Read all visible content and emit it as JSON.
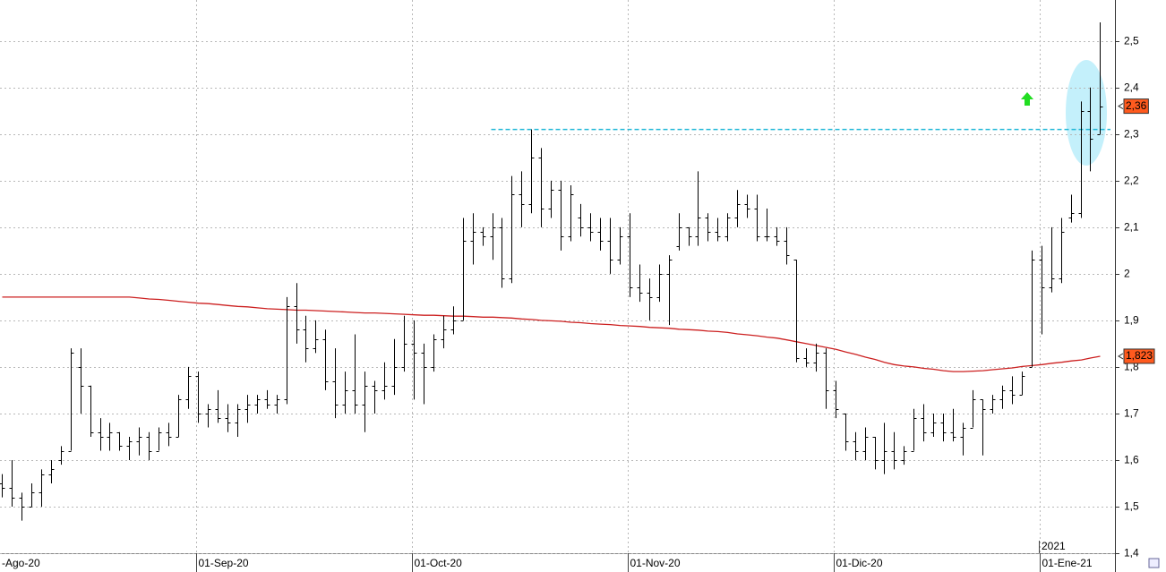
{
  "chart_data": {
    "type": "ohlc",
    "ylim": [
      1.4,
      2.588
    ],
    "yticks": [
      {
        "value": 1.4,
        "label": "1,4"
      },
      {
        "value": 1.5,
        "label": "1,5"
      },
      {
        "value": 1.6,
        "label": "1,6"
      },
      {
        "value": 1.7,
        "label": "1,7"
      },
      {
        "value": 1.8,
        "label": "1,8"
      },
      {
        "value": 1.9,
        "label": "1,9"
      },
      {
        "value": 2.0,
        "label": "2"
      },
      {
        "value": 2.1,
        "label": "2,1"
      },
      {
        "value": 2.2,
        "label": "2,2"
      },
      {
        "value": 2.3,
        "label": "2,3"
      },
      {
        "value": 2.4,
        "label": "2,4"
      },
      {
        "value": 2.5,
        "label": "2,5"
      }
    ],
    "grid": true,
    "year_label": "2021",
    "categories": [
      "-Ago-20",
      null,
      null,
      null,
      null,
      null,
      null,
      null,
      null,
      null,
      null,
      null,
      null,
      null,
      null,
      null,
      null,
      null,
      null,
      null,
      "01-Sep-20",
      null,
      null,
      null,
      null,
      null,
      null,
      null,
      null,
      null,
      null,
      null,
      null,
      null,
      null,
      null,
      null,
      null,
      null,
      null,
      null,
      null,
      "01-Oct-20",
      null,
      null,
      null,
      null,
      null,
      null,
      null,
      null,
      null,
      null,
      null,
      null,
      null,
      null,
      null,
      null,
      null,
      null,
      null,
      null,
      null,
      "01-Nov-20",
      null,
      null,
      null,
      null,
      null,
      null,
      null,
      null,
      null,
      null,
      null,
      null,
      null,
      null,
      null,
      null,
      null,
      null,
      null,
      null,
      "01-Dic-20",
      null,
      null,
      null,
      null,
      null,
      null,
      null,
      null,
      null,
      null,
      null,
      null,
      null,
      null,
      null,
      null,
      null,
      null,
      null,
      null,
      "01-Ene-21",
      null,
      null,
      null,
      null,
      null,
      null
    ],
    "ohlc_color": "#000000",
    "ohlc": [
      [
        1.55,
        1.57,
        1.52,
        1.54
      ],
      [
        1.54,
        1.6,
        1.5,
        1.52
      ],
      [
        1.52,
        1.53,
        1.47,
        1.5
      ],
      [
        1.5,
        1.55,
        1.5,
        1.53
      ],
      [
        1.53,
        1.58,
        1.5,
        1.57
      ],
      [
        1.57,
        1.6,
        1.55,
        1.58
      ],
      [
        1.6,
        1.63,
        1.59,
        1.62
      ],
      [
        1.62,
        1.84,
        1.62,
        1.83
      ],
      [
        1.8,
        1.84,
        1.7,
        1.76
      ],
      [
        1.76,
        1.76,
        1.65,
        1.66
      ],
      [
        1.66,
        1.69,
        1.62,
        1.65
      ],
      [
        1.65,
        1.68,
        1.62,
        1.66
      ],
      [
        1.66,
        1.66,
        1.62,
        1.63
      ],
      [
        1.63,
        1.65,
        1.6,
        1.64
      ],
      [
        1.64,
        1.67,
        1.61,
        1.65
      ],
      [
        1.65,
        1.66,
        1.6,
        1.62
      ],
      [
        1.62,
        1.67,
        1.62,
        1.66
      ],
      [
        1.66,
        1.68,
        1.63,
        1.65
      ],
      [
        1.65,
        1.74,
        1.65,
        1.73
      ],
      [
        1.73,
        1.8,
        1.71,
        1.78
      ],
      [
        1.78,
        1.79,
        1.68,
        1.7
      ],
      [
        1.7,
        1.72,
        1.67,
        1.71
      ],
      [
        1.71,
        1.75,
        1.68,
        1.69
      ],
      [
        1.69,
        1.72,
        1.66,
        1.68
      ],
      [
        1.68,
        1.72,
        1.65,
        1.71
      ],
      [
        1.71,
        1.74,
        1.68,
        1.72
      ],
      [
        1.72,
        1.74,
        1.7,
        1.73
      ],
      [
        1.73,
        1.75,
        1.71,
        1.72
      ],
      [
        1.72,
        1.74,
        1.7,
        1.73
      ],
      [
        1.73,
        1.95,
        1.72,
        1.93
      ],
      [
        1.93,
        1.98,
        1.85,
        1.88
      ],
      [
        1.88,
        1.91,
        1.81,
        1.84
      ],
      [
        1.84,
        1.9,
        1.83,
        1.86
      ],
      [
        1.86,
        1.88,
        1.75,
        1.77
      ],
      [
        1.77,
        1.84,
        1.69,
        1.72
      ],
      [
        1.72,
        1.79,
        1.7,
        1.75
      ],
      [
        1.75,
        1.87,
        1.7,
        1.72
      ],
      [
        1.72,
        1.79,
        1.66,
        1.76
      ],
      [
        1.76,
        1.77,
        1.7,
        1.75
      ],
      [
        1.75,
        1.81,
        1.73,
        1.76
      ],
      [
        1.76,
        1.86,
        1.74,
        1.8
      ],
      [
        1.8,
        1.91,
        1.79,
        1.85
      ],
      [
        1.85,
        1.9,
        1.73,
        1.83
      ],
      [
        1.83,
        1.85,
        1.72,
        1.8
      ],
      [
        1.8,
        1.87,
        1.79,
        1.86
      ],
      [
        1.86,
        1.91,
        1.84,
        1.88
      ],
      [
        1.88,
        1.93,
        1.87,
        1.9
      ],
      [
        1.9,
        2.12,
        1.9,
        2.07
      ],
      [
        2.07,
        2.13,
        2.02,
        2.09
      ],
      [
        2.09,
        2.1,
        2.06,
        2.08
      ],
      [
        2.08,
        2.13,
        2.03,
        2.1
      ],
      [
        2.1,
        2.12,
        1.97,
        1.99
      ],
      [
        1.99,
        2.21,
        1.98,
        2.17
      ],
      [
        2.17,
        2.22,
        2.1,
        2.15
      ],
      [
        2.15,
        2.31,
        2.13,
        2.25
      ],
      [
        2.25,
        2.27,
        2.1,
        2.14
      ],
      [
        2.14,
        2.2,
        2.12,
        2.18
      ],
      [
        2.18,
        2.2,
        2.05,
        2.08
      ],
      [
        2.08,
        2.19,
        2.07,
        2.17
      ],
      [
        2.12,
        2.15,
        2.08,
        2.1
      ],
      [
        2.1,
        2.13,
        2.07,
        2.09
      ],
      [
        2.09,
        2.12,
        2.05,
        2.07
      ],
      [
        2.07,
        2.12,
        2.0,
        2.03
      ],
      [
        2.03,
        2.1,
        2.02,
        2.08
      ],
      [
        2.08,
        2.13,
        1.95,
        1.97
      ],
      [
        1.97,
        2.02,
        1.94,
        1.96
      ],
      [
        1.96,
        1.99,
        1.9,
        1.95
      ],
      [
        1.95,
        2.02,
        1.94,
        2.0
      ],
      [
        2.0,
        2.04,
        1.89,
        2.03
      ],
      [
        2.06,
        2.13,
        2.05,
        2.1
      ],
      [
        2.1,
        2.1,
        2.06,
        2.08
      ],
      [
        2.08,
        2.22,
        2.06,
        2.12
      ],
      [
        2.12,
        2.13,
        2.07,
        2.09
      ],
      [
        2.09,
        2.12,
        2.07,
        2.08
      ],
      [
        2.08,
        2.13,
        2.07,
        2.12
      ],
      [
        2.12,
        2.18,
        2.1,
        2.15
      ],
      [
        2.15,
        2.17,
        2.12,
        2.14
      ],
      [
        2.14,
        2.17,
        2.07,
        2.08
      ],
      [
        2.08,
        2.14,
        2.07,
        2.08
      ],
      [
        2.08,
        2.1,
        2.06,
        2.07
      ],
      [
        2.07,
        2.1,
        2.02,
        2.04
      ],
      [
        2.03,
        2.03,
        1.81,
        1.82
      ],
      [
        1.82,
        1.84,
        1.8,
        1.81
      ],
      [
        1.81,
        1.85,
        1.79,
        1.83
      ],
      [
        1.83,
        1.84,
        1.71,
        1.75
      ],
      [
        1.75,
        1.77,
        1.69,
        1.71
      ],
      [
        1.7,
        1.7,
        1.62,
        1.64
      ],
      [
        1.64,
        1.66,
        1.6,
        1.62
      ],
      [
        1.62,
        1.67,
        1.6,
        1.65
      ],
      [
        1.65,
        1.65,
        1.58,
        1.6
      ],
      [
        1.6,
        1.68,
        1.57,
        1.62
      ],
      [
        1.62,
        1.66,
        1.58,
        1.6
      ],
      [
        1.6,
        1.63,
        1.59,
        1.62
      ],
      [
        1.62,
        1.71,
        1.62,
        1.69
      ],
      [
        1.69,
        1.72,
        1.64,
        1.66
      ],
      [
        1.66,
        1.7,
        1.65,
        1.68
      ],
      [
        1.68,
        1.7,
        1.64,
        1.66
      ],
      [
        1.66,
        1.71,
        1.64,
        1.65
      ],
      [
        1.65,
        1.68,
        1.61,
        1.67
      ],
      [
        1.67,
        1.75,
        1.67,
        1.73
      ],
      [
        1.73,
        1.73,
        1.61,
        1.71
      ],
      [
        1.71,
        1.74,
        1.7,
        1.73
      ],
      [
        1.73,
        1.76,
        1.71,
        1.75
      ],
      [
        1.75,
        1.78,
        1.72,
        1.74
      ],
      [
        1.74,
        1.79,
        1.74,
        1.78
      ],
      [
        1.8,
        2.05,
        1.8,
        2.03
      ],
      [
        2.03,
        2.06,
        1.87,
        1.97
      ],
      [
        1.97,
        2.1,
        1.96,
        1.99
      ],
      [
        1.99,
        2.12,
        1.98,
        2.09
      ],
      [
        2.12,
        2.17,
        2.11,
        2.13
      ],
      [
        2.13,
        2.37,
        2.12,
        2.35
      ],
      [
        2.35,
        2.4,
        2.22,
        2.29
      ],
      [
        2.3,
        2.54,
        2.3,
        2.36
      ]
    ],
    "last_price_label": {
      "value": 2.36,
      "label": "2,36"
    },
    "moving_average": {
      "color": "#cc2020",
      "values": [
        1.95,
        1.95,
        1.95,
        1.95,
        1.95,
        1.95,
        1.95,
        1.95,
        1.95,
        1.95,
        1.95,
        1.95,
        1.95,
        1.95,
        1.948,
        1.946,
        1.945,
        1.943,
        1.941,
        1.939,
        1.937,
        1.936,
        1.934,
        1.932,
        1.93,
        1.929,
        1.927,
        1.925,
        1.924,
        1.923,
        1.922,
        1.922,
        1.921,
        1.92,
        1.919,
        1.918,
        1.917,
        1.916,
        1.916,
        1.915,
        1.914,
        1.913,
        1.912,
        1.911,
        1.911,
        1.91,
        1.909,
        1.909,
        1.908,
        1.907,
        1.907,
        1.906,
        1.905,
        1.903,
        1.902,
        1.9,
        1.899,
        1.898,
        1.896,
        1.895,
        1.893,
        1.892,
        1.891,
        1.889,
        1.888,
        1.887,
        1.885,
        1.884,
        1.883,
        1.881,
        1.88,
        1.879,
        1.877,
        1.876,
        1.874,
        1.871,
        1.869,
        1.867,
        1.864,
        1.862,
        1.858,
        1.854,
        1.85,
        1.846,
        1.842,
        1.838,
        1.832,
        1.827,
        1.821,
        1.816,
        1.81,
        1.805,
        1.802,
        1.8,
        1.797,
        1.795,
        1.792,
        1.79,
        1.79,
        1.791,
        1.792,
        1.794,
        1.796,
        1.798,
        1.801,
        1.803,
        1.805,
        1.808,
        1.81,
        1.813,
        1.815,
        1.819,
        1.823
      ],
      "last_label": {
        "value": 1.823,
        "label": "1,823"
      }
    },
    "hline": {
      "value": 2.31,
      "color": "#22b8d8"
    }
  }
}
